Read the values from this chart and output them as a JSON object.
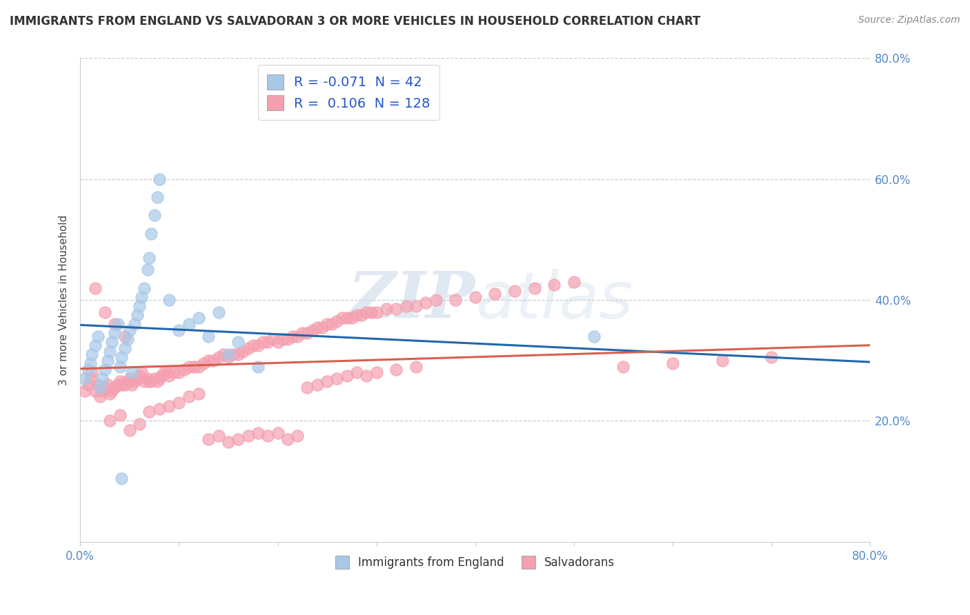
{
  "title": "IMMIGRANTS FROM ENGLAND VS SALVADORAN 3 OR MORE VEHICLES IN HOUSEHOLD CORRELATION CHART",
  "source": "Source: ZipAtlas.com",
  "ylabel": "3 or more Vehicles in Household",
  "xlim": [
    0.0,
    0.8
  ],
  "ylim": [
    0.0,
    0.8
  ],
  "xticks": [
    0.0,
    0.1,
    0.2,
    0.3,
    0.4,
    0.5,
    0.6,
    0.7,
    0.8
  ],
  "yticks": [
    0.0,
    0.2,
    0.4,
    0.6,
    0.8
  ],
  "blue_R": -0.071,
  "blue_N": 42,
  "pink_R": 0.106,
  "pink_N": 128,
  "blue_color": "#a8c8e8",
  "pink_color": "#f4a0b0",
  "blue_line_color": "#2166ac",
  "pink_line_color": "#d6604d",
  "legend1_label": "Immigrants from England",
  "legend2_label": "Salvadorans",
  "watermark_zip": "ZIP",
  "watermark_atlas": "atlas",
  "tick_color": "#5588cc",
  "grid_color": "#cccccc",
  "blue_scatter_x": [
    0.005,
    0.008,
    0.01,
    0.012,
    0.015,
    0.018,
    0.02,
    0.022,
    0.025,
    0.028,
    0.03,
    0.032,
    0.035,
    0.038,
    0.04,
    0.042,
    0.045,
    0.048,
    0.05,
    0.052,
    0.055,
    0.058,
    0.06,
    0.062,
    0.065,
    0.068,
    0.07,
    0.072,
    0.075,
    0.078,
    0.08,
    0.09,
    0.1,
    0.11,
    0.12,
    0.13,
    0.14,
    0.15,
    0.16,
    0.18,
    0.52,
    0.042
  ],
  "blue_scatter_y": [
    0.27,
    0.285,
    0.295,
    0.31,
    0.325,
    0.34,
    0.255,
    0.27,
    0.285,
    0.3,
    0.315,
    0.33,
    0.345,
    0.36,
    0.29,
    0.305,
    0.32,
    0.335,
    0.35,
    0.28,
    0.36,
    0.375,
    0.39,
    0.405,
    0.42,
    0.45,
    0.47,
    0.51,
    0.54,
    0.57,
    0.6,
    0.4,
    0.35,
    0.36,
    0.37,
    0.34,
    0.38,
    0.31,
    0.33,
    0.29,
    0.34,
    0.105
  ],
  "pink_scatter_x": [
    0.005,
    0.008,
    0.01,
    0.012,
    0.015,
    0.018,
    0.02,
    0.022,
    0.025,
    0.028,
    0.03,
    0.032,
    0.035,
    0.038,
    0.04,
    0.042,
    0.045,
    0.048,
    0.05,
    0.052,
    0.055,
    0.058,
    0.06,
    0.062,
    0.065,
    0.068,
    0.07,
    0.072,
    0.075,
    0.078,
    0.08,
    0.082,
    0.085,
    0.088,
    0.09,
    0.095,
    0.1,
    0.105,
    0.11,
    0.115,
    0.12,
    0.125,
    0.13,
    0.135,
    0.14,
    0.145,
    0.15,
    0.155,
    0.16,
    0.165,
    0.17,
    0.175,
    0.18,
    0.185,
    0.19,
    0.195,
    0.2,
    0.205,
    0.21,
    0.215,
    0.22,
    0.225,
    0.23,
    0.235,
    0.24,
    0.245,
    0.25,
    0.255,
    0.26,
    0.265,
    0.27,
    0.275,
    0.28,
    0.285,
    0.29,
    0.295,
    0.3,
    0.31,
    0.32,
    0.33,
    0.34,
    0.35,
    0.36,
    0.38,
    0.4,
    0.42,
    0.44,
    0.46,
    0.48,
    0.5,
    0.03,
    0.04,
    0.05,
    0.06,
    0.07,
    0.08,
    0.09,
    0.1,
    0.11,
    0.12,
    0.13,
    0.14,
    0.15,
    0.16,
    0.17,
    0.18,
    0.19,
    0.2,
    0.21,
    0.22,
    0.23,
    0.24,
    0.25,
    0.26,
    0.27,
    0.28,
    0.29,
    0.3,
    0.32,
    0.34,
    0.015,
    0.025,
    0.035,
    0.045,
    0.55,
    0.6,
    0.65,
    0.7
  ],
  "pink_scatter_y": [
    0.25,
    0.26,
    0.27,
    0.28,
    0.25,
    0.26,
    0.24,
    0.25,
    0.255,
    0.26,
    0.245,
    0.25,
    0.255,
    0.26,
    0.265,
    0.26,
    0.26,
    0.265,
    0.27,
    0.26,
    0.265,
    0.27,
    0.275,
    0.28,
    0.265,
    0.27,
    0.265,
    0.265,
    0.27,
    0.265,
    0.27,
    0.275,
    0.28,
    0.28,
    0.275,
    0.28,
    0.28,
    0.285,
    0.29,
    0.29,
    0.29,
    0.295,
    0.3,
    0.3,
    0.305,
    0.31,
    0.305,
    0.31,
    0.31,
    0.315,
    0.32,
    0.325,
    0.325,
    0.33,
    0.33,
    0.335,
    0.33,
    0.335,
    0.335,
    0.34,
    0.34,
    0.345,
    0.345,
    0.35,
    0.355,
    0.355,
    0.36,
    0.36,
    0.365,
    0.37,
    0.37,
    0.37,
    0.375,
    0.375,
    0.38,
    0.38,
    0.38,
    0.385,
    0.385,
    0.39,
    0.39,
    0.395,
    0.4,
    0.4,
    0.405,
    0.41,
    0.415,
    0.42,
    0.425,
    0.43,
    0.2,
    0.21,
    0.185,
    0.195,
    0.215,
    0.22,
    0.225,
    0.23,
    0.24,
    0.245,
    0.17,
    0.175,
    0.165,
    0.17,
    0.175,
    0.18,
    0.175,
    0.18,
    0.17,
    0.175,
    0.255,
    0.26,
    0.265,
    0.27,
    0.275,
    0.28,
    0.275,
    0.28,
    0.285,
    0.29,
    0.42,
    0.38,
    0.36,
    0.34,
    0.29,
    0.295,
    0.3,
    0.305
  ]
}
